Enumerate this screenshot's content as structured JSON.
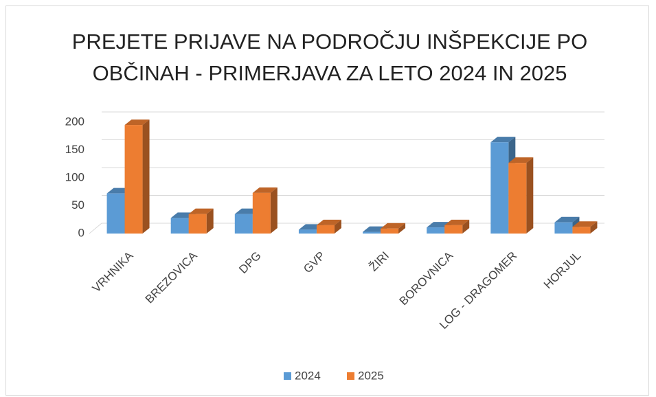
{
  "chart_data": {
    "type": "bar3d",
    "title": "PREJETE PRIJAVE NA PODROČJU INŠPEKCIJE PO OBČINAH - PRIMERJAVA ZA LETO 2024 IN 2025",
    "categories": [
      "VRHNIKA",
      "BREZOVICA",
      "DPG",
      "GVP",
      "ŽIRI",
      "BOROVNICA",
      "LOG - DRAGOMER",
      "HORJUL"
    ],
    "series": [
      {
        "name": "2024",
        "color": "#5b9bd5",
        "values": [
          72,
          28,
          35,
          7,
          3,
          11,
          164,
          20
        ]
      },
      {
        "name": "2025",
        "color": "#ed7d31",
        "values": [
          195,
          35,
          73,
          15,
          9,
          15,
          127,
          12
        ]
      }
    ],
    "ylim": [
      0,
      200
    ],
    "yticks": [
      0,
      50,
      100,
      150,
      200
    ],
    "grid": true,
    "legend": "bottom"
  }
}
